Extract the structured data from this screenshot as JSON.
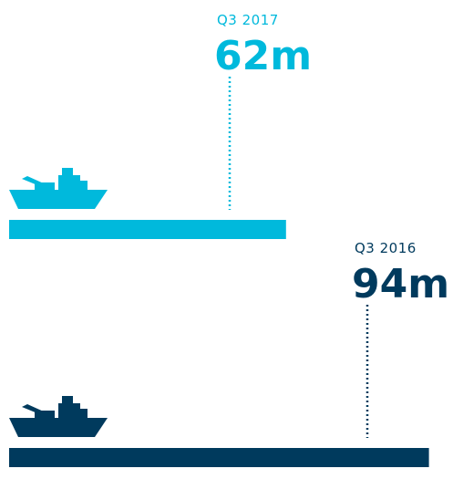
{
  "chart_data": {
    "type": "bar",
    "orientation": "horizontal",
    "categories": [
      "Q3 2017",
      "Q3 2016"
    ],
    "values": [
      62,
      94
    ],
    "value_labels": [
      "62m",
      "94m"
    ],
    "xlim": [
      0,
      100
    ],
    "grid": false,
    "legend": "none",
    "colors": [
      "#00b9dc",
      "#003a5d"
    ],
    "icon": "ship-icon"
  }
}
